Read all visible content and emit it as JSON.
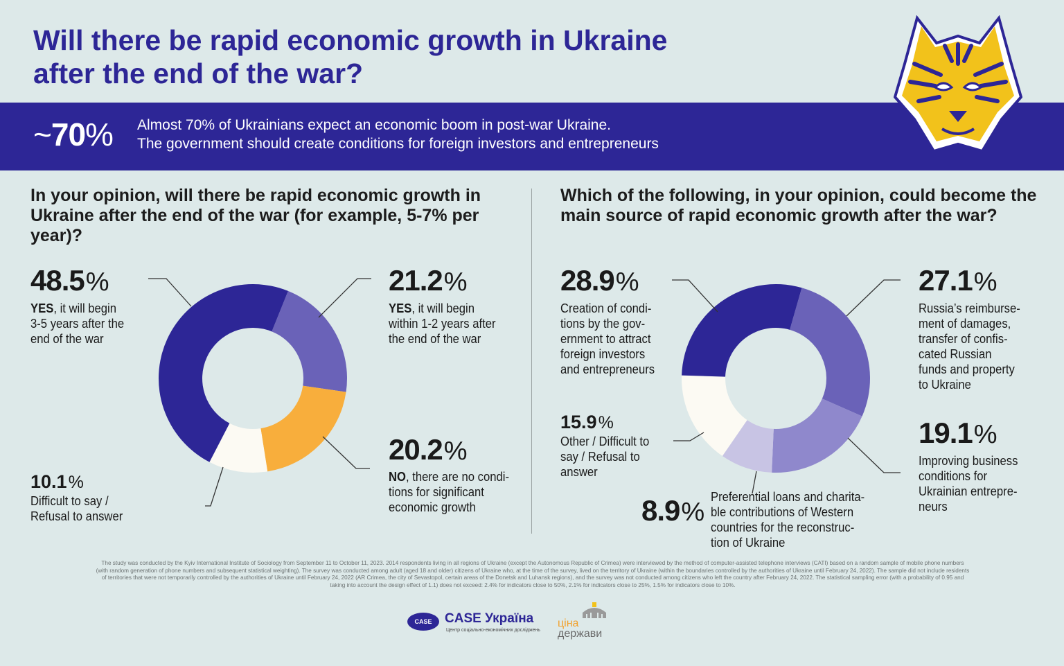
{
  "header": {
    "title_line1": "Will there be rapid economic growth in Ukraine",
    "title_line2": "after the end of the war?",
    "highlight_tilde": "~",
    "highlight_value": "70",
    "highlight_sign": "%",
    "highlight_line1": "Almost 70% of Ukrainians expect an economic boom in post-war Ukraine.",
    "highlight_line2": "The government should create conditions for foreign investors and entrepreneurs"
  },
  "colors": {
    "navy": "#2d2696",
    "violet": "#6a62b8",
    "lavender": "#8f88cc",
    "pale_lavender": "#c8c4e4",
    "orange": "#f8ae3c",
    "cream": "#fcfaf3",
    "background": "#dde9e9",
    "tiger_yellow": "#f2c21b"
  },
  "left": {
    "question": "In your opinion, will there be rapid economic growth in Ukraine after the end of the war (for example, 5-7% per year)?",
    "labels": {
      "yes35": {
        "value": "48.5",
        "sign": "%",
        "bold": "YES",
        "line1_rest": ", it will begin",
        "line2": "3-5 years after the",
        "line3": "end of the war"
      },
      "yes12": {
        "value": "21.2",
        "sign": "%",
        "bold": "YES",
        "line1_rest": ", it will begin",
        "line2": "within 1-2 years after",
        "line3": "the end of the war"
      },
      "no": {
        "value": "20.2",
        "sign": "%",
        "bold": "NO",
        "line1_rest": ", there are no condi-",
        "line2": "tions for significant",
        "line3": "economic growth"
      },
      "difficult": {
        "value": "10.1",
        "sign": "%",
        "line1": "Difficult to say /",
        "line2": "Refusal to answer"
      }
    }
  },
  "right": {
    "question": "Which of the following, in your opinion, could become the main source of rapid economic growth after the war?",
    "labels": {
      "creation": {
        "value": "28.9",
        "sign": "%",
        "line1": "Creation of condi-",
        "line2": "tions by the gov-",
        "line3": "ernment to attract",
        "line4": "foreign investors",
        "line5": "and entrepreneurs"
      },
      "russia": {
        "value": "27.1",
        "sign": "%",
        "line1": "Russia’s reimburse-",
        "line2": "ment of damages,",
        "line3": "transfer of confis-",
        "line4": "cated Russian",
        "line5": "funds and property",
        "line6": "to Ukraine"
      },
      "improving": {
        "value": "19.1",
        "sign": "%",
        "line1": "Improving business",
        "line2": "conditions for",
        "line3": "Ukrainian entrepre-",
        "line4": "neurs"
      },
      "loans": {
        "value": "8.9",
        "sign": "%",
        "line1": "Preferential loans and charita-",
        "line2": "ble contributions of Western",
        "line3": "countries for the reconstruc-",
        "line4": "tion of Ukraine"
      },
      "other": {
        "value": "15.9",
        "sign": "%",
        "line1": "Other / Difficult to",
        "line2": "say / Refusal to",
        "line3": "answer"
      }
    }
  },
  "chart_data": [
    {
      "type": "pie",
      "title": "In your opinion, will there be rapid economic growth in Ukraine after the end of the war (for example, 5-7% per year)?",
      "categories": [
        "YES, it will begin within 1-2 years after the end of the war",
        "NO, there are no conditions for significant economic growth",
        "Difficult to say / Refusal to answer",
        "YES, it will begin 3-5 years after the end of the war"
      ],
      "values": [
        21.2,
        20.2,
        10.1,
        48.5
      ],
      "colors": [
        "#6a62b8",
        "#f8ae3c",
        "#fcfaf3",
        "#2d2696"
      ],
      "donut": true
    },
    {
      "type": "pie",
      "title": "Which of the following, in your opinion, could become the main source of rapid economic growth after the war?",
      "categories": [
        "Russia’s reimbursement of damages, transfer of confiscated Russian funds and property to Ukraine",
        "Improving business conditions for Ukrainian entrepreneurs",
        "Preferential loans and charitable contributions of Western countries for the reconstruction of Ukraine",
        "Other / Difficult to say / Refusal to answer",
        "Creation of conditions by the government to attract foreign investors and entrepreneurs"
      ],
      "values": [
        27.1,
        19.1,
        8.9,
        15.9,
        28.9
      ],
      "colors": [
        "#6a62b8",
        "#8f88cc",
        "#c8c4e4",
        "#fcfaf3",
        "#2d2696"
      ],
      "donut": true
    }
  ],
  "footnote": {
    "line1": "The study was conducted by the Kyiv International Institute of Sociology from September 11 to October 11, 2023. 2014 respondents living in all regions of Ukraine (except the Autonomous Republic of Crimea) were interviewed by the method of computer-assisted telephone interviews (CATI) based on a random sample of mobile phone numbers",
    "line2": "(with random generation of phone numbers and subsequent statistical weighting). The survey was conducted among adult (aged 18 and older) citizens of Ukraine who, at the time of the survey, lived on the territory of Ukraine (within the boundaries controlled by the authorities of Ukraine until February 24, 2022). The sample did not include residents",
    "line3": "of territories that were not temporarily controlled by the authorities of Ukraine until February 24, 2022 (AR Crimea, the city of Sevastopol, certain areas of the Donetsk and Luhansk regions), and the survey was not conducted among citizens who left the country after February 24, 2022. The statistical sampling error (with a probability of 0.95 and",
    "line4": "taking into account the design effect of 1.1) does not exceed: 2.4% for indicators close to 50%, 2.1% for indicators close to 25%, 1.5% for indicators close to 10%."
  },
  "logos": {
    "case_oval": "CASE",
    "case_name": "CASE Україна",
    "case_sub": "Центр соціально-економічних досліджень",
    "cina_line1": "ціна",
    "cina_line2": "держави"
  }
}
